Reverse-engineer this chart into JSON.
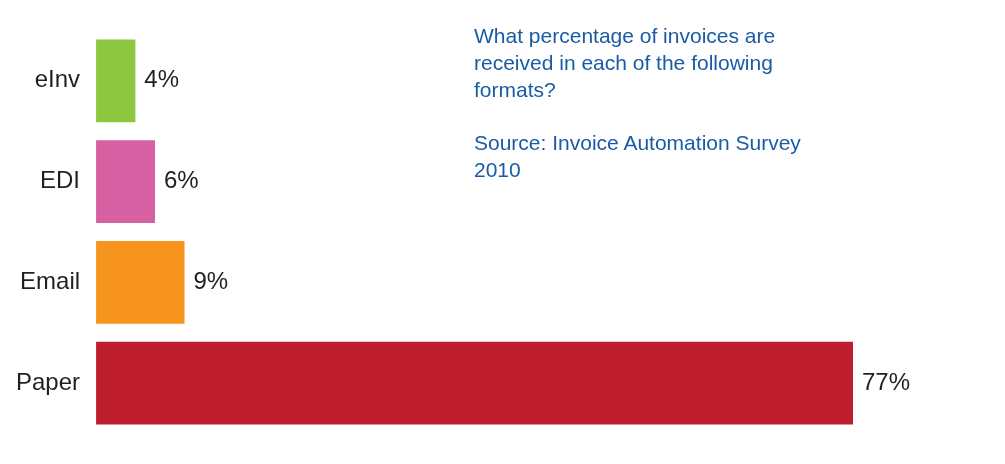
{
  "chart_data": {
    "type": "bar",
    "orientation": "horizontal",
    "categories": [
      "eInv",
      "EDI",
      "Email",
      "Paper"
    ],
    "values": [
      4,
      6,
      9,
      77
    ],
    "colors": [
      "#8dc63f",
      "#d660a1",
      "#f7941d",
      "#be1e2d"
    ],
    "value_labels": [
      "4%",
      "6%",
      "9%",
      "77%"
    ],
    "annotations": [
      "What percentage of invoices are received in each of the following formats?",
      "Source: Invoice Automation Survey 2010"
    ],
    "legend": false
  }
}
